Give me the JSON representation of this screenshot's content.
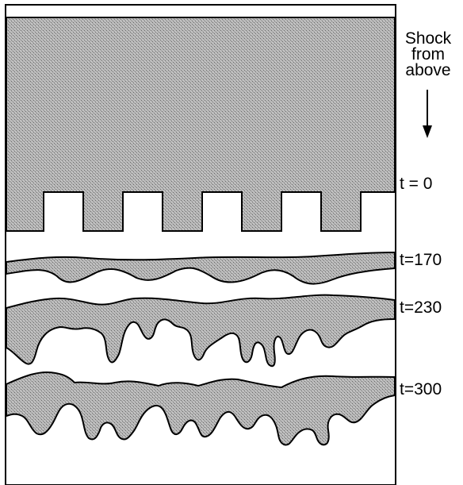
{
  "annotation": {
    "line1": "Shock",
    "line2": "from",
    "line3": "above"
  },
  "time_labels": {
    "t0": "t = 0",
    "t170": "t=170",
    "t230": "t=230",
    "t300": "t=300"
  },
  "colors": {
    "fluid_fill": "#b4b4b4",
    "outline": "#000000",
    "background": "#ffffff"
  },
  "icons": {
    "shock_direction": "arrow-down-icon"
  }
}
